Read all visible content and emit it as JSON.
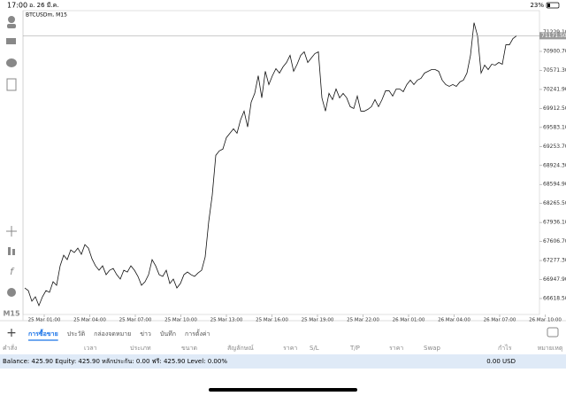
{
  "status_bar": {
    "time": "17:00",
    "date": "อ. 26 มี.ค.",
    "battery": "23%"
  },
  "toolbar": {
    "timeframe": "M15"
  },
  "chart_data": {
    "type": "line",
    "title": "BTCUSDm, M15",
    "color": "#111111",
    "values": [
      66802,
      66756,
      66573,
      66649,
      66496,
      66649,
      66756,
      66726,
      66910,
      66848,
      67185,
      67369,
      67293,
      67461,
      67415,
      67492,
      67385,
      67553,
      67492,
      67308,
      67185,
      67109,
      67185,
      67032,
      67109,
      67139,
      67032,
      66956,
      67109,
      67078,
      67185,
      67109,
      67002,
      66848,
      66910,
      67032,
      67293,
      67185,
      67032,
      67002,
      67109,
      66879,
      66956,
      66802,
      66879,
      67032,
      67078,
      67032,
      67002,
      67063,
      67109,
      67339,
      67951,
      68411,
      69100,
      69177,
      69208,
      69407,
      69483,
      69560,
      69483,
      69713,
      69866,
      69591,
      70020,
      70173,
      70479,
      70096,
      70556,
      70326,
      70479,
      70602,
      70525,
      70632,
      70709,
      70832,
      70556,
      70678,
      70832,
      70893,
      70709,
      70786,
      70862,
      70893,
      70096,
      69866,
      70173,
      70066,
      70249,
      70096,
      70173,
      70096,
      69943,
      69912,
      70127,
      69866,
      69866,
      69897,
      69943,
      70066,
      69943,
      70066,
      70219,
      70219,
      70127,
      70249,
      70249,
      70203,
      70326,
      70403,
      70326,
      70403,
      70433,
      70525,
      70556,
      70586,
      70586,
      70556,
      70403,
      70326,
      70295,
      70326,
      70295,
      70372,
      70403,
      70525,
      70832,
      71398,
      71169,
      70525,
      70663,
      70586,
      70678,
      70663,
      70709,
      70678,
      71015,
      71015,
      71123,
      71169
    ],
    "x_tick_labels": [
      "25 Mar 01:00",
      "25 Mar 04:00",
      "25 Mar 07:00",
      "25 Mar 10:00",
      "25 Mar 13:00",
      "25 Mar 16:00",
      "25 Mar 19:00",
      "25 Mar 22:00",
      "26 Mar 01:00",
      "26 Mar 04:00",
      "26 Mar 07:00",
      "26 Mar 10:00"
    ],
    "ylim": [
      66342,
      71607
    ],
    "yticks": [
      {
        "value": 71229.1,
        "label": "71229.10"
      },
      {
        "value": 70900.7,
        "label": "70900.70"
      },
      {
        "value": 70571.3,
        "label": "70571.30"
      },
      {
        "value": 70241.9,
        "label": "70241.90"
      },
      {
        "value": 69912.5,
        "label": "69912.50"
      },
      {
        "value": 69583.1,
        "label": "69583.10"
      },
      {
        "value": 69253.7,
        "label": "69253.70"
      },
      {
        "value": 68924.3,
        "label": "68924.30"
      },
      {
        "value": 68594.9,
        "label": "68594.90"
      },
      {
        "value": 68265.5,
        "label": "68265.50"
      },
      {
        "value": 67936.1,
        "label": "67936.10"
      },
      {
        "value": 67606.7,
        "label": "67606.70"
      },
      {
        "value": 67277.3,
        "label": "67277.30"
      },
      {
        "value": 66947.9,
        "label": "66947.90"
      },
      {
        "value": 66618.5,
        "label": "66618.50"
      }
    ],
    "current_price": {
      "value": 71171.5,
      "label": "71171.50"
    }
  },
  "tabs": [
    "การซื้อขาย",
    "ประวัติ",
    "กล่องจดหมาย",
    "ข่าว",
    "บันทึก",
    "การตั้งค่า"
  ],
  "table": {
    "headers": [
      "คำสั่ง",
      "เวลา",
      "ประเภท",
      "ขนาด",
      "สัญลักษณ์",
      "ราคา",
      "S/L",
      "T/P",
      "ราคา",
      "Swap",
      "กำไร",
      "หมายเหตุ"
    ],
    "summary": "Balance: 425.90 Equity: 425.90 หลักประกัน: 0.00 ฟรี: 425.90 Level: 0.00%",
    "total": "0.00 USD"
  }
}
